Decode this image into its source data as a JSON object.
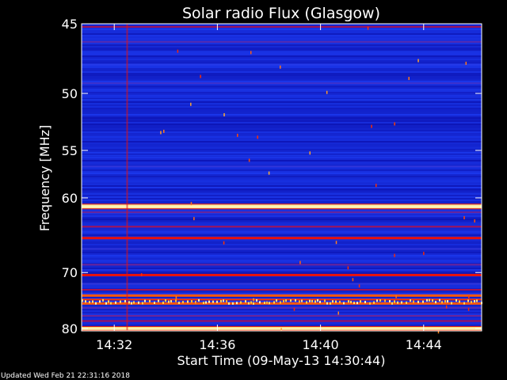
{
  "chart_data": {
    "type": "heatmap",
    "title": "Solar radio Flux (Glasgow)",
    "xlabel": "Start Time (09-May-13 14:30:44)",
    "ylabel": "Frequency [MHz]",
    "x_start": "14:30:44",
    "x_end": "14:46:15",
    "x_ticks": [
      {
        "label": "14:32",
        "value": "14:32"
      },
      {
        "label": "14:36",
        "value": "14:36"
      },
      {
        "label": "14:40",
        "value": "14:40"
      },
      {
        "label": "14:44",
        "value": "14:44"
      }
    ],
    "ylim": [
      45,
      80.5
    ],
    "y_scale": "reciprocal",
    "y_inverted": true,
    "y_ticks": [
      45,
      50,
      55,
      60,
      70,
      80
    ],
    "y_tick_labels": [
      "45",
      "50",
      "55",
      "60",
      "70",
      "80"
    ],
    "colormap": [
      "#05004a",
      "#0b12b0",
      "#1d3cf2",
      "#e00010",
      "#ff3a00",
      "#ffd040",
      "#fff6c0"
    ],
    "background_intensity": 0.25,
    "channels": [
      {
        "freq": 45.2,
        "intensity": 0.45,
        "thickness": 2
      },
      {
        "freq": 46.2,
        "intensity": 0.38,
        "thickness": 2
      },
      {
        "freq": 47.8,
        "intensity": 0.34,
        "thickness": 2
      },
      {
        "freq": 49.2,
        "intensity": 0.36,
        "thickness": 2
      },
      {
        "freq": 50.5,
        "intensity": 0.3,
        "thickness": 2
      },
      {
        "freq": 55.5,
        "intensity": 0.3,
        "thickness": 2
      },
      {
        "freq": 56.6,
        "intensity": 0.35,
        "thickness": 2
      },
      {
        "freq": 58.2,
        "intensity": 0.28,
        "thickness": 2
      },
      {
        "freq": 61.0,
        "intensity": 0.95,
        "thickness": 5
      },
      {
        "freq": 61.7,
        "intensity": 0.4,
        "thickness": 2
      },
      {
        "freq": 63.5,
        "intensity": 0.45,
        "thickness": 2
      },
      {
        "freq": 65.0,
        "intensity": 0.55,
        "thickness": 3
      },
      {
        "freq": 66.5,
        "intensity": 0.35,
        "thickness": 2
      },
      {
        "freq": 68.8,
        "intensity": 0.4,
        "thickness": 2
      },
      {
        "freq": 70.4,
        "intensity": 0.55,
        "thickness": 3
      },
      {
        "freq": 71.8,
        "intensity": 0.35,
        "thickness": 2
      },
      {
        "freq": 72.8,
        "intensity": 0.45,
        "thickness": 2
      },
      {
        "freq": 73.8,
        "intensity": 0.7,
        "thickness": 3
      },
      {
        "freq": 74.5,
        "intensity": 0.65,
        "thickness": 2
      },
      {
        "freq": 75.2,
        "intensity": 0.7,
        "thickness": 3
      },
      {
        "freq": 76.0,
        "intensity": 0.38,
        "thickness": 2
      },
      {
        "freq": 77.5,
        "intensity": 0.4,
        "thickness": 2
      },
      {
        "freq": 78.5,
        "intensity": 0.45,
        "thickness": 2
      },
      {
        "freq": 80.0,
        "intensity": 0.92,
        "thickness": 4
      }
    ],
    "burst_band": {
      "freq_min": 74.4,
      "freq_max": 75.0,
      "intensity": 0.8
    },
    "vertical_stripe": {
      "time": "14:32:30",
      "intensity": 0.55
    }
  },
  "footer": {
    "updated_text": "Updated Wed Feb 21 22:31:16 2018"
  }
}
